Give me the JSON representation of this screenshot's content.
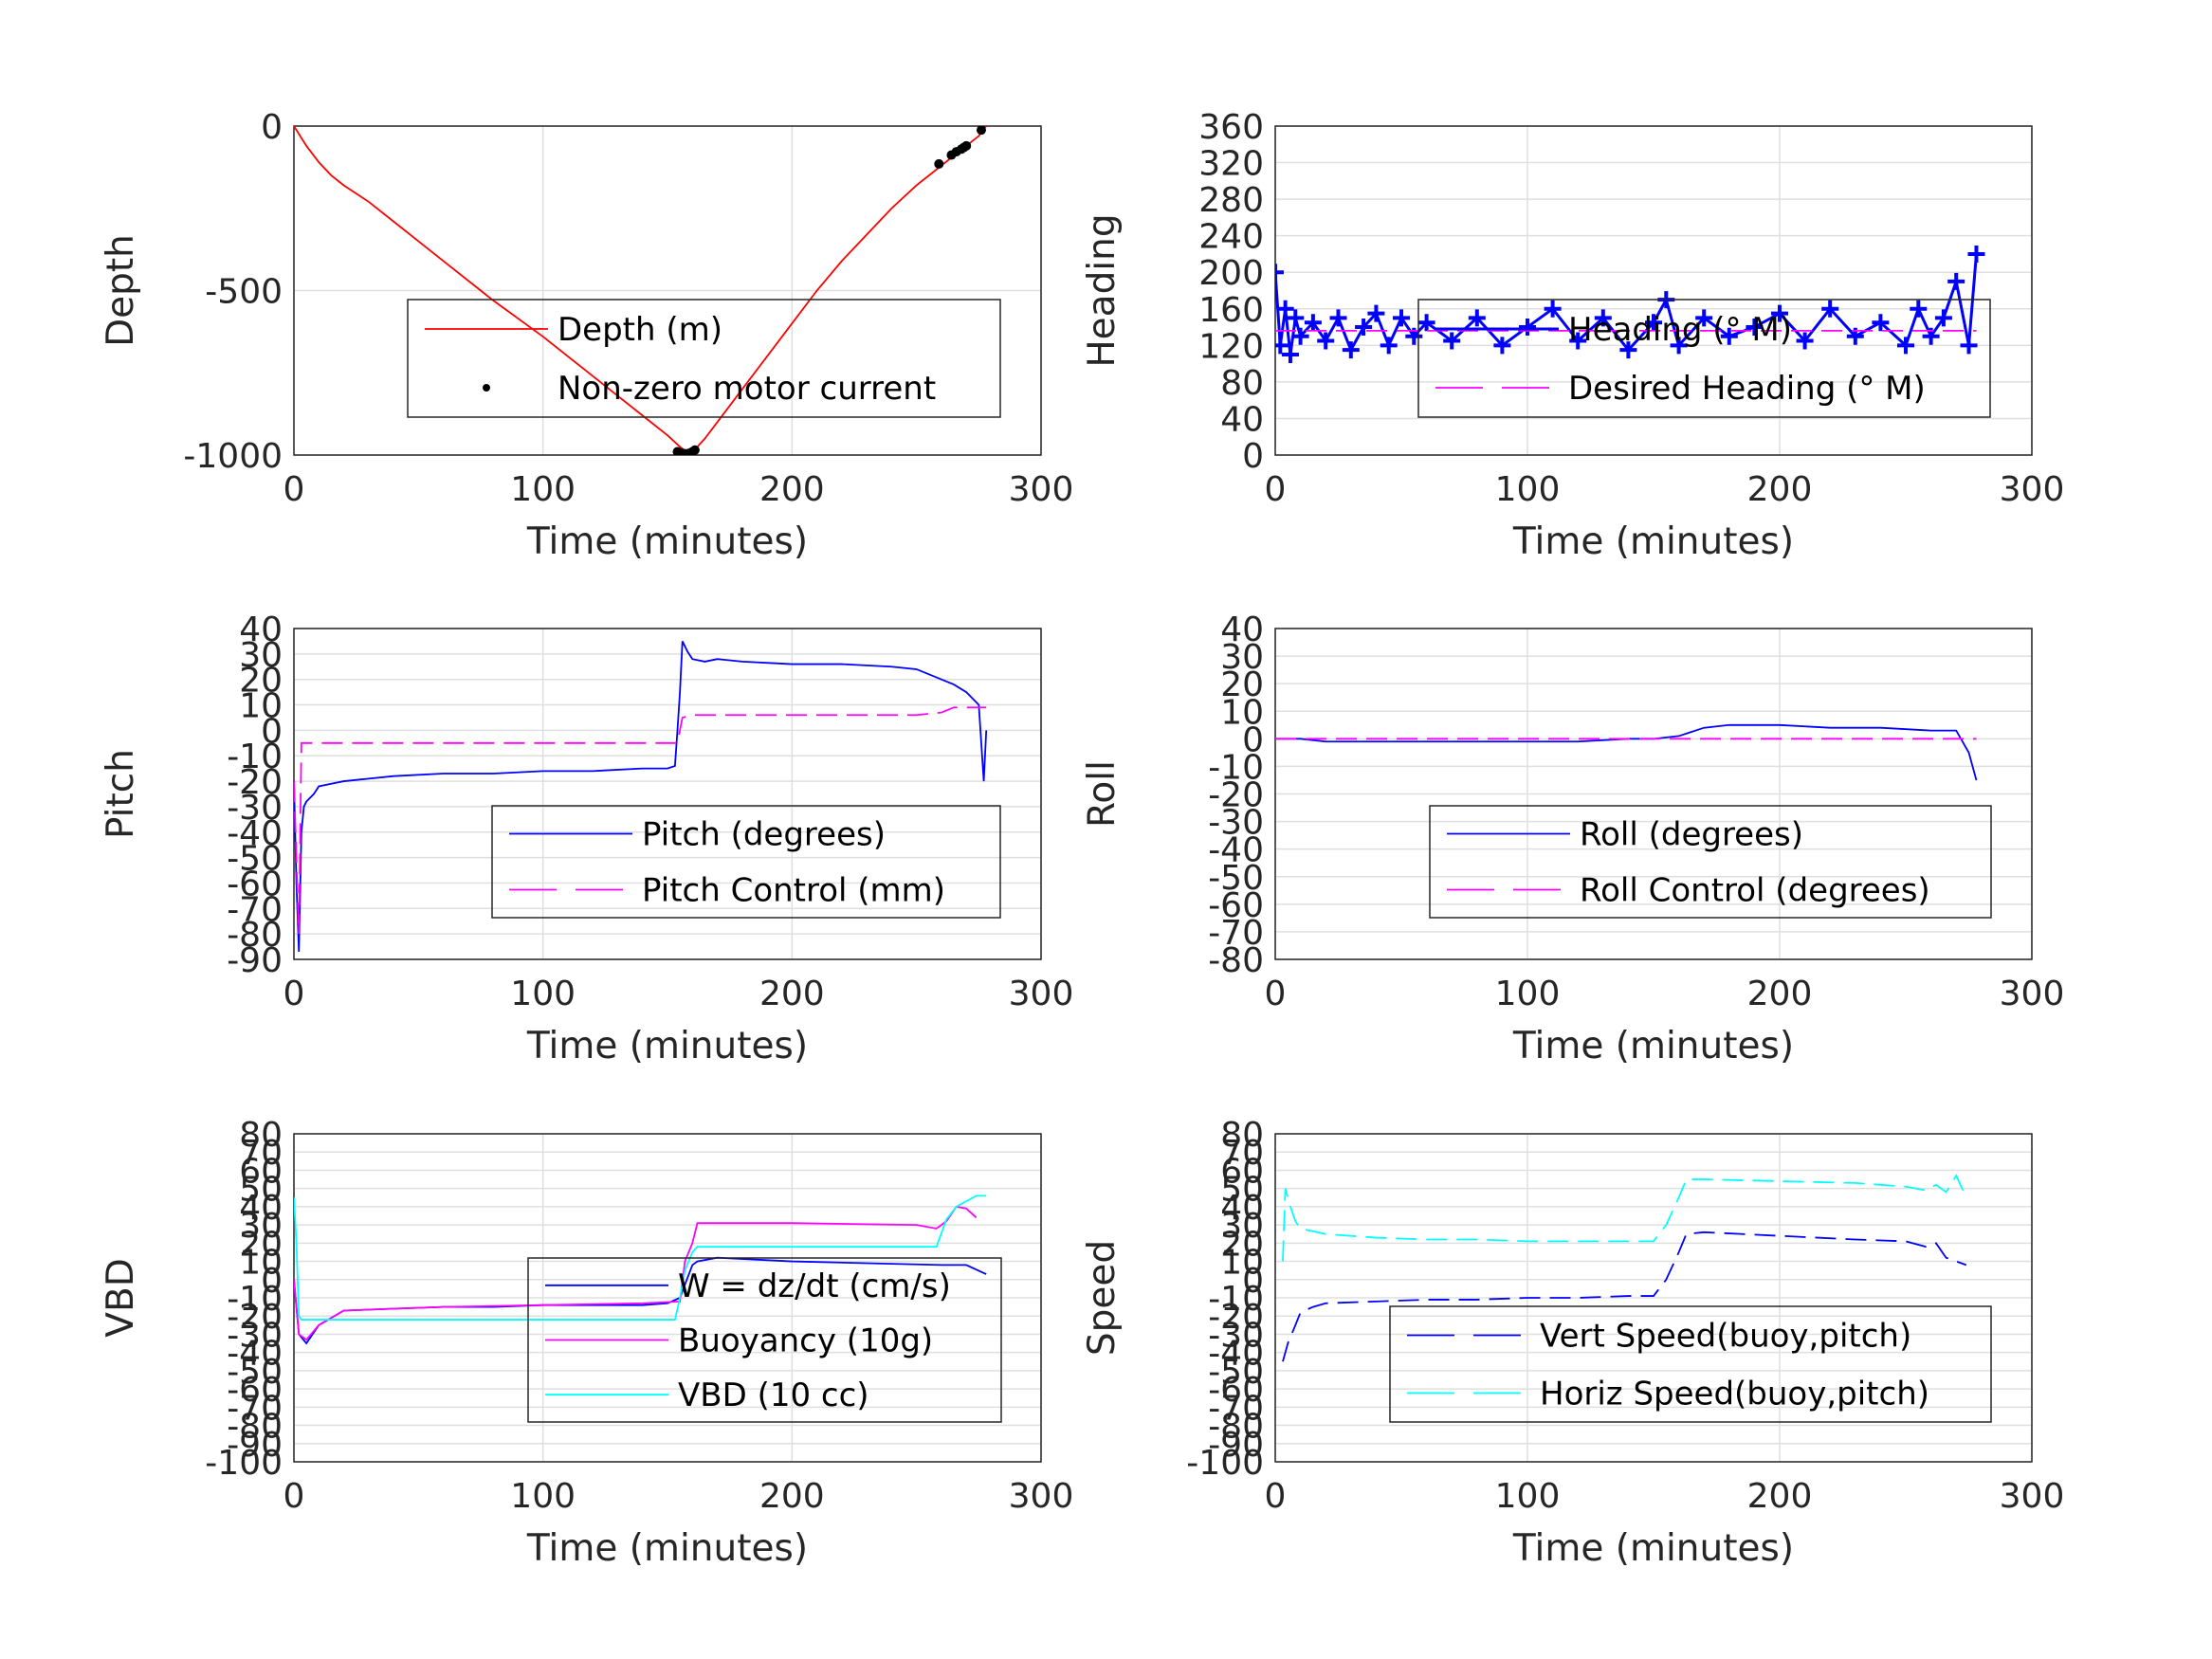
{
  "chart_data": [
    {
      "type": "line",
      "xlabel": "Time (minutes)",
      "ylabel": "Depth",
      "xlim": [
        0,
        300
      ],
      "ylim": [
        -1000,
        0
      ],
      "xticks": [
        "0",
        "100",
        "200",
        "300"
      ],
      "yticks": [
        "-1000",
        "-500",
        "0"
      ],
      "grid": true,
      "legend_position": "lower-right",
      "series": [
        {
          "name": "Depth (m)",
          "color": "#ff0000",
          "style": "solid",
          "x": [
            0,
            5,
            10,
            15,
            20,
            30,
            40,
            60,
            80,
            100,
            120,
            140,
            150,
            155,
            158,
            160,
            162,
            165,
            170,
            180,
            190,
            200,
            210,
            220,
            230,
            240,
            250,
            260,
            265,
            270,
            275,
            278
          ],
          "y": [
            0,
            -60,
            -110,
            -150,
            -180,
            -230,
            -290,
            -410,
            -530,
            -640,
            -760,
            -880,
            -940,
            -975,
            -992,
            -985,
            -975,
            -950,
            -900,
            -800,
            -700,
            -600,
            -500,
            -410,
            -330,
            -250,
            -180,
            -120,
            -90,
            -60,
            -30,
            0
          ]
        },
        {
          "name": "Non-zero motor current",
          "color": "#000000",
          "style": "markers",
          "x": [
            154,
            155,
            156,
            157,
            158,
            159,
            160,
            161,
            259,
            264,
            266,
            268,
            269,
            270,
            276
          ],
          "y": [
            -990,
            -993,
            -995,
            -996,
            -996,
            -994,
            -990,
            -985,
            -115,
            -88,
            -78,
            -70,
            -65,
            -60,
            -12
          ]
        }
      ]
    },
    {
      "type": "line",
      "xlabel": "Time (minutes)",
      "ylabel": "Heading",
      "xlim": [
        0,
        300
      ],
      "ylim": [
        0,
        360
      ],
      "xticks": [
        "0",
        "100",
        "200",
        "300"
      ],
      "yticks": [
        "0",
        "40",
        "80",
        "120",
        "160",
        "200",
        "240",
        "280",
        "320",
        "360"
      ],
      "grid": true,
      "legend_position": "right",
      "series": [
        {
          "name": "Heading (° M)",
          "color": "#0000ff",
          "style": "plus-markers",
          "x": [
            0,
            2,
            4,
            6,
            8,
            10,
            15,
            20,
            25,
            30,
            35,
            40,
            45,
            50,
            55,
            60,
            70,
            80,
            90,
            100,
            110,
            120,
            130,
            140,
            150,
            155,
            160,
            170,
            180,
            190,
            200,
            210,
            220,
            230,
            240,
            250,
            255,
            260,
            265,
            270,
            275,
            278
          ],
          "y": [
            200,
            120,
            160,
            110,
            150,
            130,
            145,
            125,
            150,
            115,
            140,
            155,
            120,
            150,
            130,
            145,
            125,
            150,
            120,
            140,
            160,
            125,
            150,
            115,
            145,
            170,
            120,
            150,
            130,
            140,
            155,
            125,
            160,
            130,
            145,
            120,
            160,
            130,
            150,
            190,
            120,
            220
          ]
        },
        {
          "name": "Desired Heading (° M)",
          "color": "#ff00ff",
          "style": "dashed",
          "x": [
            0,
            278
          ],
          "y": [
            136,
            136
          ]
        }
      ]
    },
    {
      "type": "line",
      "xlabel": "Time (minutes)",
      "ylabel": "Pitch",
      "xlim": [
        0,
        300
      ],
      "ylim": [
        -90,
        40
      ],
      "xticks": [
        "0",
        "100",
        "200",
        "300"
      ],
      "yticks": [
        "-90",
        "-80",
        "-70",
        "-60",
        "-50",
        "-40",
        "-30",
        "-20",
        "-10",
        "0",
        "10",
        "20",
        "30",
        "40"
      ],
      "grid": true,
      "legend_position": "lower-right",
      "series": [
        {
          "name": "Pitch (degrees)",
          "color": "#0000ff",
          "style": "solid",
          "x": [
            0,
            1,
            2,
            3,
            4,
            5,
            8,
            10,
            15,
            20,
            30,
            40,
            60,
            80,
            100,
            120,
            140,
            150,
            153,
            154,
            155,
            156,
            158,
            160,
            165,
            170,
            180,
            200,
            220,
            240,
            250,
            255,
            260,
            265,
            270,
            275,
            277,
            278
          ],
          "y": [
            -20,
            -60,
            -87,
            -40,
            -30,
            -28,
            -25,
            -22,
            -21,
            -20,
            -19,
            -18,
            -17,
            -17,
            -16,
            -16,
            -15,
            -15,
            -14,
            0,
            15,
            35,
            31,
            28,
            27,
            28,
            27,
            26,
            26,
            25,
            24,
            22,
            20,
            18,
            15,
            10,
            -20,
            0
          ]
        },
        {
          "name": "Pitch Control (mm)",
          "color": "#ff00ff",
          "style": "dashed",
          "x": [
            0,
            1,
            2,
            3,
            10,
            50,
            100,
            150,
            154,
            155,
            156,
            160,
            200,
            250,
            260,
            265,
            278
          ],
          "y": [
            -20,
            -50,
            -80,
            -5,
            -5,
            -5,
            -5,
            -5,
            -5,
            0,
            5,
            6,
            6,
            6,
            7,
            9,
            9
          ]
        }
      ]
    },
    {
      "type": "line",
      "xlabel": "Time (minutes)",
      "ylabel": "Roll",
      "xlim": [
        0,
        300
      ],
      "ylim": [
        -80,
        40
      ],
      "xticks": [
        "0",
        "100",
        "200",
        "300"
      ],
      "yticks": [
        "-80",
        "-70",
        "-60",
        "-50",
        "-40",
        "-30",
        "-20",
        "-10",
        "0",
        "10",
        "20",
        "30",
        "40"
      ],
      "grid": true,
      "legend_position": "lower-right",
      "series": [
        {
          "name": "Roll (degrees)",
          "color": "#0000ff",
          "style": "solid",
          "x": [
            0,
            10,
            20,
            40,
            60,
            80,
            100,
            120,
            140,
            150,
            160,
            170,
            180,
            200,
            220,
            240,
            260,
            270,
            275,
            278
          ],
          "y": [
            0,
            0,
            -1,
            -1,
            -1,
            -1,
            -1,
            -1,
            0,
            0,
            1,
            4,
            5,
            5,
            4,
            4,
            3,
            3,
            -5,
            -15
          ]
        },
        {
          "name": "Roll Control (degrees)",
          "color": "#ff00ff",
          "style": "dashed",
          "x": [
            0,
            10,
            20,
            40,
            60,
            80,
            100,
            120,
            140,
            150,
            160,
            180,
            200,
            220,
            240,
            260,
            278
          ],
          "y": [
            0,
            0,
            0,
            0,
            0,
            0,
            0,
            0,
            0,
            0,
            0,
            0,
            0,
            0,
            0,
            0,
            0
          ]
        }
      ]
    },
    {
      "type": "line",
      "xlabel": "Time (minutes)",
      "ylabel": "VBD",
      "xlim": [
        0,
        300
      ],
      "ylim": [
        -100,
        80
      ],
      "xticks": [
        "0",
        "100",
        "200",
        "300"
      ],
      "yticks": [
        "-100",
        "-90",
        "-80",
        "-70",
        "-60",
        "-50",
        "-40",
        "-30",
        "-20",
        "-10",
        "0",
        "10",
        "20",
        "30",
        "40",
        "50",
        "60",
        "70",
        "80"
      ],
      "grid": true,
      "legend_position": "lower-right",
      "series": [
        {
          "name": "W = dz/dt (cm/s)",
          "color": "#0000ff",
          "style": "solid",
          "x": [
            0,
            2,
            5,
            10,
            20,
            40,
            60,
            80,
            100,
            120,
            140,
            150,
            155,
            160,
            162,
            170,
            200,
            230,
            260,
            270,
            278
          ],
          "y": [
            0,
            -30,
            -35,
            -25,
            -17,
            -16,
            -15,
            -15,
            -14,
            -14,
            -14,
            -13,
            -10,
            8,
            10,
            12,
            10,
            9,
            8,
            8,
            3
          ]
        },
        {
          "name": "Buoyancy (10g)",
          "color": "#ff00ff",
          "style": "solid",
          "x": [
            0,
            2,
            5,
            10,
            20,
            40,
            60,
            100,
            140,
            155,
            157,
            160,
            162,
            200,
            250,
            258,
            262,
            266,
            270,
            274
          ],
          "y": [
            0,
            -30,
            -33,
            -25,
            -17,
            -16,
            -15,
            -14,
            -13,
            -12,
            10,
            20,
            31,
            31,
            30,
            28,
            32,
            40,
            39,
            34
          ]
        },
        {
          "name": "VBD (10 cc)",
          "color": "#00ffff",
          "style": "solid",
          "x": [
            0,
            1,
            2,
            3,
            5,
            50,
            100,
            153,
            155,
            157,
            160,
            162,
            200,
            250,
            258,
            262,
            266,
            270,
            274,
            278
          ],
          "y": [
            45,
            20,
            -20,
            -22,
            -22,
            -22,
            -22,
            -22,
            -10,
            5,
            15,
            18,
            18,
            18,
            18,
            33,
            40,
            43,
            46,
            46
          ]
        }
      ]
    },
    {
      "type": "line",
      "xlabel": "Time (minutes)",
      "ylabel": "Speed",
      "xlim": [
        0,
        300
      ],
      "ylim": [
        -100,
        80
      ],
      "xticks": [
        "0",
        "100",
        "200",
        "300"
      ],
      "yticks": [
        "-100",
        "-90",
        "-80",
        "-70",
        "-60",
        "-50",
        "-40",
        "-30",
        "-20",
        "-10",
        "0",
        "10",
        "20",
        "30",
        "40",
        "50",
        "60",
        "70",
        "80"
      ],
      "grid": true,
      "legend_position": "lower-right",
      "series": [
        {
          "name": "Vert Speed(buoy,pitch)",
          "color": "#0000ff",
          "style": "dashed",
          "x": [
            3,
            5,
            8,
            10,
            15,
            20,
            40,
            60,
            80,
            100,
            120,
            140,
            150,
            155,
            160,
            163,
            170,
            200,
            230,
            250,
            258,
            262,
            266,
            270,
            274
          ],
          "y": [
            -45,
            -35,
            -25,
            -18,
            -15,
            -13,
            -12,
            -11,
            -11,
            -10,
            -10,
            -9,
            -9,
            0,
            15,
            25,
            26,
            24,
            22,
            21,
            18,
            20,
            12,
            10,
            8
          ]
        },
        {
          "name": "Horiz Speed(buoy,pitch)",
          "color": "#00ffff",
          "style": "dashed",
          "x": [
            3,
            4,
            5,
            6,
            8,
            10,
            20,
            40,
            60,
            80,
            100,
            120,
            140,
            150,
            155,
            160,
            163,
            170,
            200,
            230,
            250,
            258,
            262,
            266,
            270,
            274
          ],
          "y": [
            10,
            50,
            45,
            40,
            32,
            28,
            25,
            23,
            22,
            22,
            21,
            21,
            21,
            21,
            30,
            45,
            55,
            55,
            54,
            53,
            51,
            49,
            52,
            48,
            57,
            45
          ]
        }
      ]
    }
  ]
}
